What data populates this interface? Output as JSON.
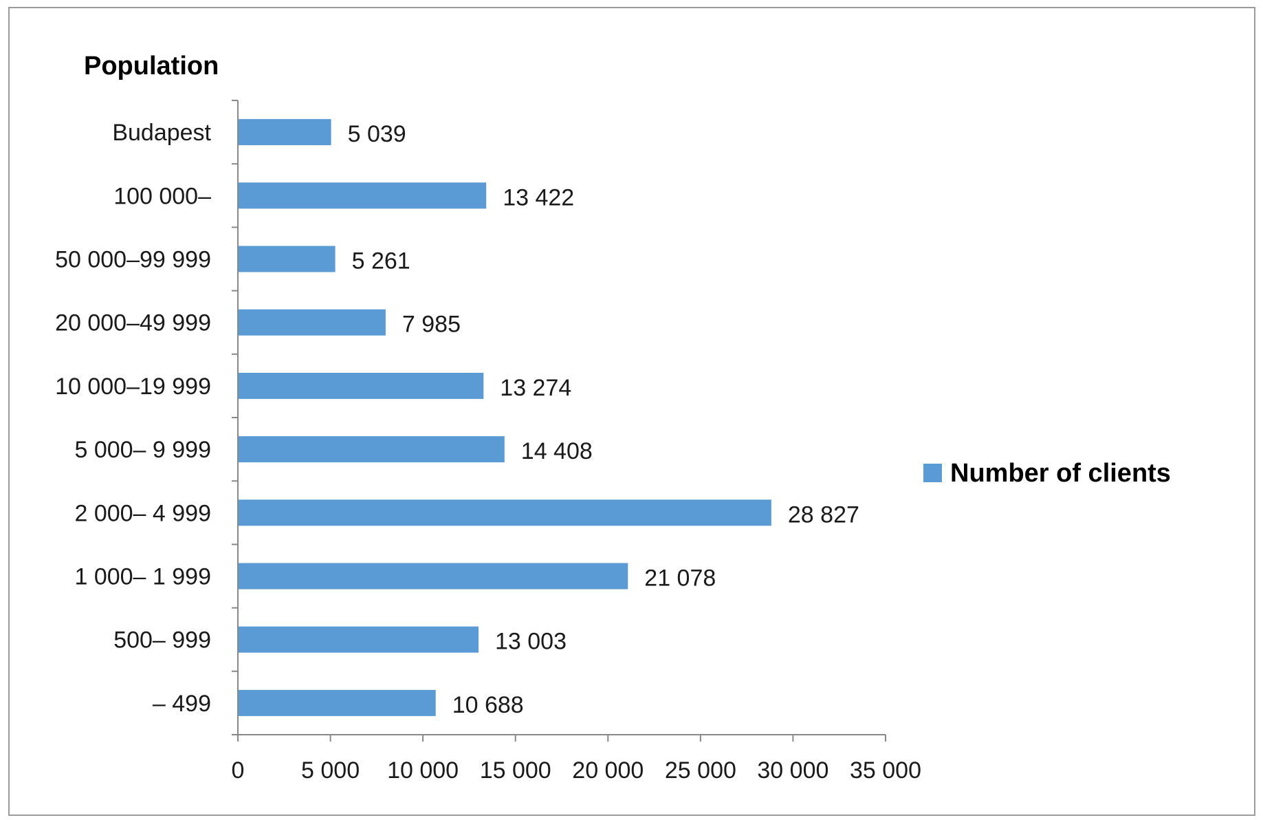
{
  "chart_data": {
    "type": "bar",
    "orientation": "horizontal",
    "ylabel": "Population",
    "categories": [
      "Budapest",
      "100 000–",
      "50 000–99 999",
      "20 000–49 999",
      "10 000–19 999",
      "5 000– 9 999",
      "2 000– 4 999",
      "1 000– 1 999",
      "500– 999",
      "– 499"
    ],
    "series": [
      {
        "name": "Number of clients",
        "values": [
          5039,
          13422,
          5261,
          7985,
          13274,
          14408,
          28827,
          21078,
          13003,
          10688
        ],
        "data_labels": [
          "5 039",
          "13 422",
          "5 261",
          "7 985",
          "13 274",
          "14 408",
          "28 827",
          "21 078",
          "13 003",
          "10 688"
        ],
        "color": "#5B9BD5"
      }
    ],
    "xlim": [
      0,
      35000
    ],
    "xticks": [
      0,
      5000,
      10000,
      15000,
      20000,
      25000,
      30000,
      35000
    ],
    "xtick_labels": [
      "0",
      "5 000",
      "10 000",
      "15 000",
      "20 000",
      "25 000",
      "30 000",
      "35 000"
    ],
    "grid": false,
    "legend_position": "right"
  }
}
